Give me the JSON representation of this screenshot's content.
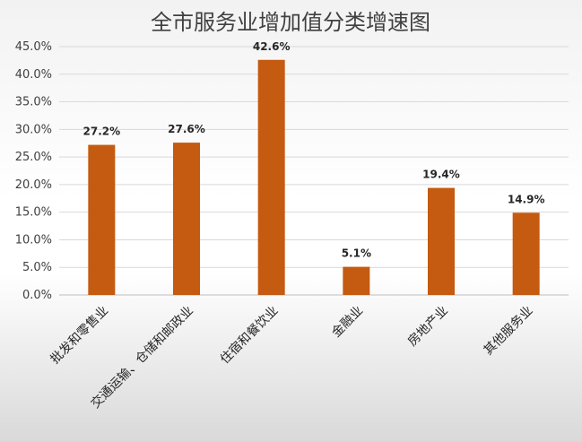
{
  "chart_data": {
    "type": "bar",
    "title": "全市服务业增加值分类增速图",
    "categories": [
      "批发和零售业",
      "交通运输、仓储和邮政业",
      "住宿和餐饮业",
      "金融业",
      "房地产业",
      "其他服务业"
    ],
    "values": [
      27.2,
      27.6,
      42.6,
      5.1,
      19.4,
      14.9
    ],
    "data_labels": [
      "27.2%",
      "27.6%",
      "42.6%",
      "5.1%",
      "19.4%",
      "14.9%"
    ],
    "ylim": [
      0,
      45
    ],
    "y_ticks": [
      0,
      5,
      10,
      15,
      20,
      25,
      30,
      35,
      40,
      45
    ],
    "y_tick_labels": [
      "0.0%",
      "5.0%",
      "10.0%",
      "15.0%",
      "20.0%",
      "25.0%",
      "30.0%",
      "35.0%",
      "40.0%",
      "45.0%"
    ],
    "grid": true,
    "legend": "none",
    "colors": {
      "bar": "#c55a11",
      "grid": "#d9d9d9",
      "text": "#404040"
    }
  }
}
